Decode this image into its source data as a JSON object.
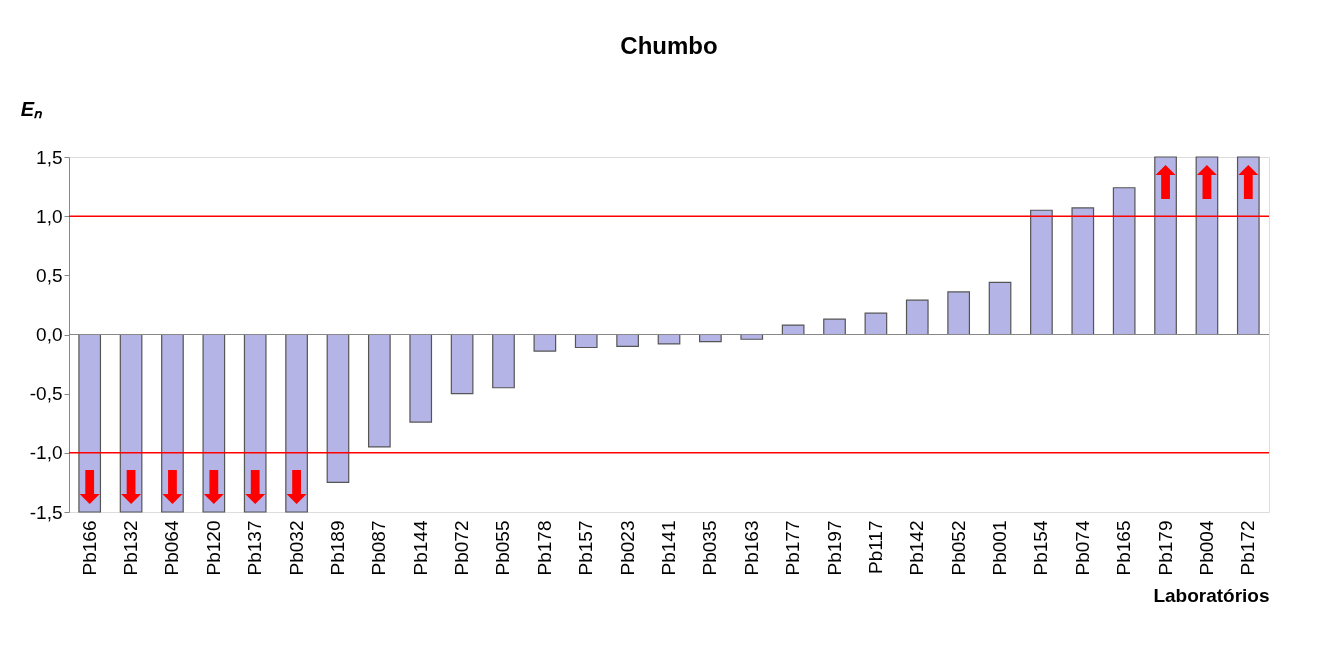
{
  "chart_data": {
    "type": "bar",
    "title": "Chumbo",
    "xlabel": "Laboratórios",
    "ylabel": "Eₙ",
    "categories": [
      "Pb166",
      "Pb132",
      "Pb064",
      "Pb120",
      "Pb137",
      "Pb032",
      "Pb189",
      "Pb087",
      "Pb144",
      "Pb072",
      "Pb055",
      "Pb178",
      "Pb157",
      "Pb023",
      "Pb141",
      "Pb035",
      "Pb163",
      "Pb177",
      "Pb197",
      "Pb117",
      "Pb142",
      "Pb052",
      "Pb001",
      "Pb154",
      "Pb074",
      "Pb165",
      "Pb179",
      "Pb004",
      "Pb172"
    ],
    "values": [
      -1.5,
      -1.5,
      -1.5,
      -1.5,
      -1.5,
      -1.5,
      -1.25,
      -0.95,
      -0.74,
      -0.5,
      -0.45,
      -0.14,
      -0.11,
      -0.1,
      -0.08,
      -0.06,
      -0.04,
      0.08,
      0.13,
      0.18,
      0.29,
      0.36,
      0.44,
      1.05,
      1.07,
      1.24,
      1.5,
      1.5,
      1.5
    ],
    "color": "#b4b4e6",
    "ylim": [
      -1.5,
      1.5
    ],
    "yticks": [
      {
        "value": -1.5,
        "label": "-1,5"
      },
      {
        "value": -1.0,
        "label": "-1,0"
      },
      {
        "value": -0.5,
        "label": "-0,5"
      },
      {
        "value": 0,
        "label": "0,0"
      },
      {
        "value": 0.5,
        "label": "0,5"
      },
      {
        "value": 1.0,
        "label": "1,0"
      },
      {
        "value": 1.5,
        "label": "1,5"
      }
    ],
    "ref_lines": [
      {
        "axis": "y",
        "value": 1.0,
        "color": "#ff0000"
      },
      {
        "axis": "y",
        "value": -1.0,
        "color": "#ff0000"
      }
    ],
    "grid": false
  }
}
